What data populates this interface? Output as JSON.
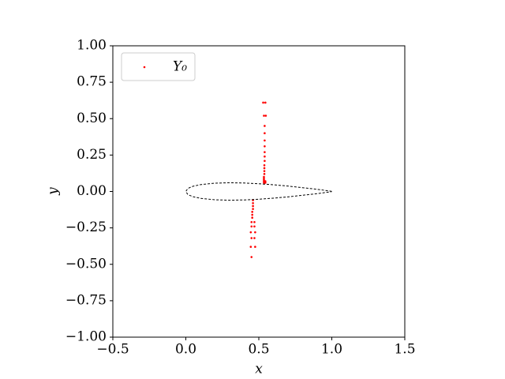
{
  "chart_data": {
    "type": "scatter",
    "xlabel": "x",
    "ylabel": "y",
    "xlim": [
      -0.5,
      1.5
    ],
    "ylim": [
      -1.0,
      1.0
    ],
    "xticks": [
      {
        "value": -0.5,
        "label": "−0.5"
      },
      {
        "value": 0,
        "label": "0.0"
      },
      {
        "value": 0.5,
        "label": "0.5"
      },
      {
        "value": 1,
        "label": "1.0"
      },
      {
        "value": 1.5,
        "label": "1.5"
      }
    ],
    "yticks": [
      {
        "value": -1,
        "label": "−1.00"
      },
      {
        "value": -0.75,
        "label": "−0.75"
      },
      {
        "value": -0.5,
        "label": "−0.50"
      },
      {
        "value": -0.25,
        "label": "−0.25"
      },
      {
        "value": 0,
        "label": "0.00"
      },
      {
        "value": 0.25,
        "label": "0.25"
      },
      {
        "value": 0.5,
        "label": "0.50"
      },
      {
        "value": 0.75,
        "label": "0.75"
      },
      {
        "value": 1,
        "label": "1.00"
      }
    ],
    "legend": "upper left",
    "series": [
      {
        "name": "Y₀",
        "color": "#ff0000",
        "x": [
          0.53,
          0.545,
          0.535,
          0.548,
          0.54,
          0.54,
          0.54,
          0.54,
          0.54,
          0.54,
          0.54,
          0.538,
          0.538,
          0.538,
          0.538,
          0.535,
          0.535,
          0.535,
          0.535,
          0.545,
          0.54,
          0.535,
          0.545,
          0.46,
          0.46,
          0.46,
          0.46,
          0.455,
          0.455,
          0.455,
          0.45,
          0.47,
          0.45,
          0.47,
          0.445,
          0.475,
          0.45,
          0.47,
          0.445,
          0.475,
          0.45
        ],
        "y": [
          0.61,
          0.61,
          0.52,
          0.52,
          0.45,
          0.4,
          0.35,
          0.31,
          0.27,
          0.24,
          0.21,
          0.18,
          0.16,
          0.14,
          0.12,
          0.1,
          0.09,
          0.08,
          0.07,
          0.07,
          0.06,
          0.06,
          0.06,
          -0.06,
          -0.08,
          -0.1,
          -0.12,
          -0.14,
          -0.16,
          -0.18,
          -0.21,
          -0.21,
          -0.24,
          -0.24,
          -0.28,
          -0.28,
          -0.32,
          -0.32,
          -0.38,
          -0.38,
          -0.45
        ]
      },
      {
        "color": "#000000",
        "linestyle": "dashed",
        "x": [
          1.0,
          0.9,
          0.8,
          0.7,
          0.6,
          0.5,
          0.4,
          0.3,
          0.2,
          0.1,
          0.05,
          0.025,
          0.0125,
          0.0,
          0.0125,
          0.025,
          0.05,
          0.1,
          0.2,
          0.3,
          0.4,
          0.5,
          0.6,
          0.7,
          0.8,
          0.9,
          1.0
        ],
        "y": [
          0.001,
          0.015,
          0.026,
          0.037,
          0.046,
          0.053,
          0.058,
          0.06,
          0.057,
          0.047,
          0.036,
          0.026,
          0.019,
          0.0,
          -0.019,
          -0.026,
          -0.036,
          -0.047,
          -0.057,
          -0.06,
          -0.058,
          -0.053,
          -0.046,
          -0.037,
          -0.026,
          -0.015,
          -0.001
        ]
      }
    ]
  }
}
